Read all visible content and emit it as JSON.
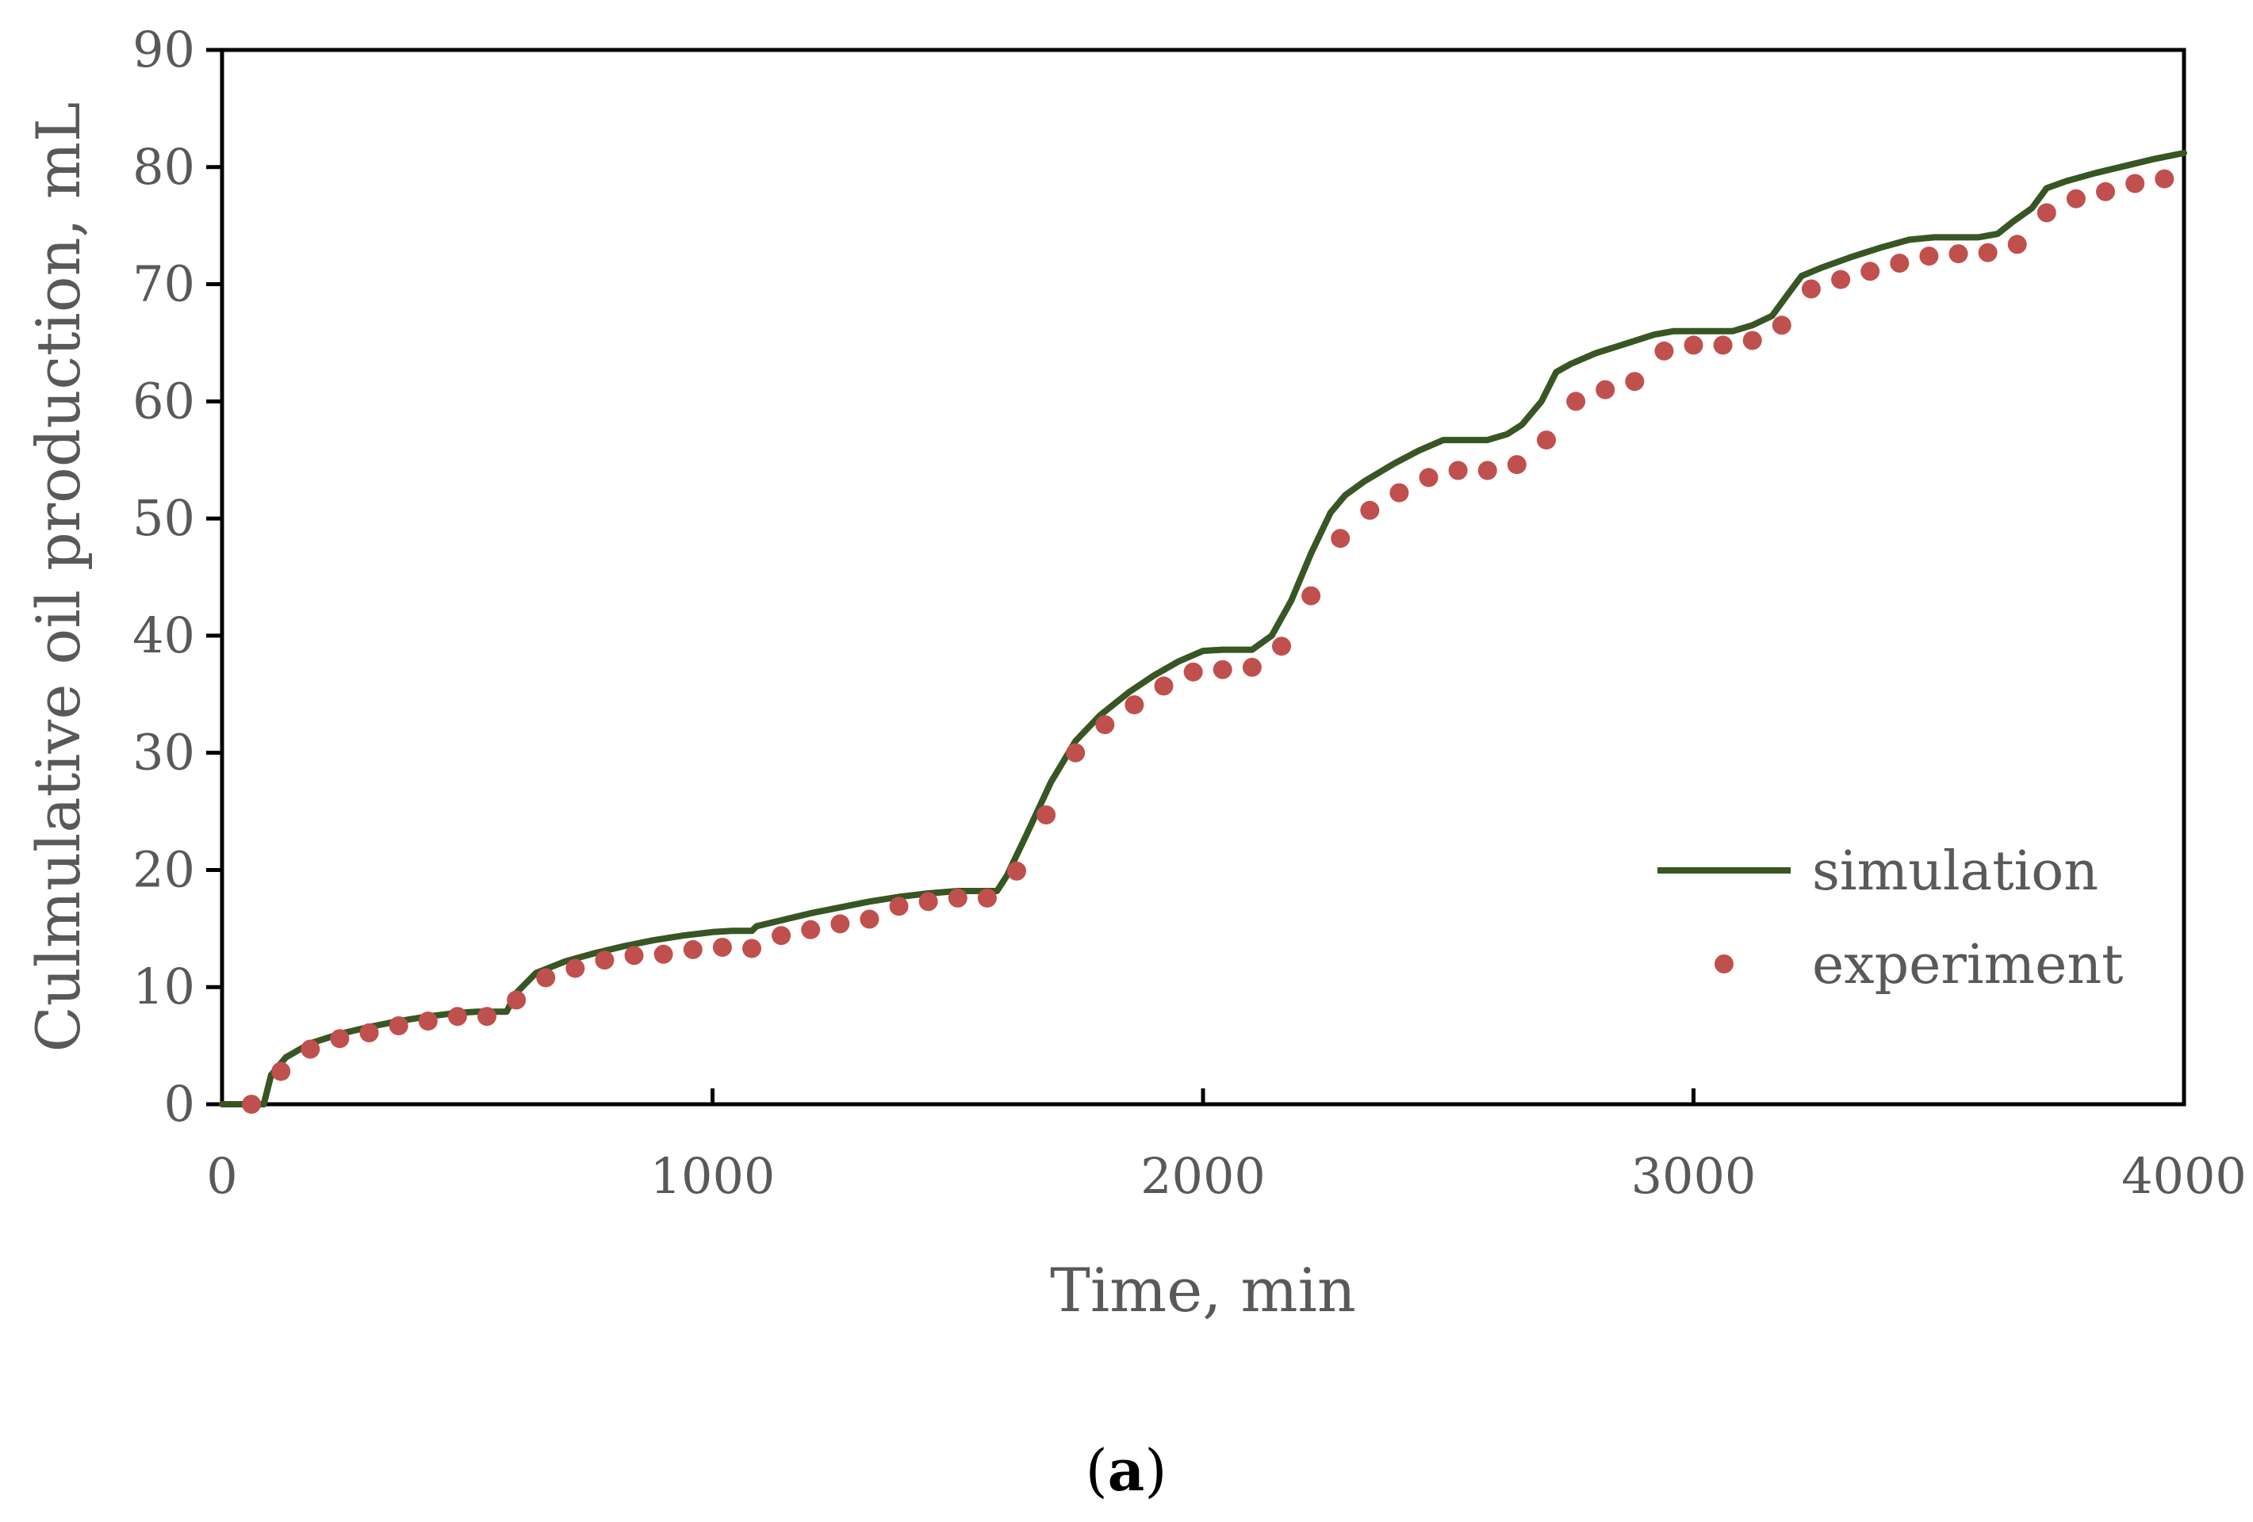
{
  "chart_data": {
    "type": "line",
    "title": "",
    "xlabel": "Time, min",
    "ylabel": "Culmulative oil production, mL",
    "xlim": [
      0,
      4000
    ],
    "ylim": [
      0,
      90
    ],
    "xticks": [
      0,
      1000,
      2000,
      3000,
      4000
    ],
    "yticks": [
      0,
      10,
      20,
      30,
      40,
      50,
      60,
      70,
      80,
      90
    ],
    "grid": false,
    "legend_position": "bottom-right",
    "caption": {
      "prefix": "(",
      "letter": "a",
      "suffix": ")"
    },
    "colors": {
      "simulation": "#375623",
      "experiment": "#c0504d",
      "axis": "#000000",
      "text": "#595959"
    },
    "series": [
      {
        "name": "simulation",
        "style": "line",
        "x": [
          0,
          85,
          100,
          130,
          180,
          240,
          300,
          360,
          420,
          480,
          520,
          580,
          600,
          640,
          700,
          760,
          820,
          880,
          940,
          1000,
          1040,
          1080,
          1090,
          1150,
          1200,
          1260,
          1320,
          1380,
          1440,
          1500,
          1560,
          1580,
          1600,
          1640,
          1690,
          1740,
          1790,
          1850,
          1900,
          1950,
          2000,
          2040,
          2080,
          2100,
          2140,
          2180,
          2220,
          2260,
          2290,
          2330,
          2390,
          2440,
          2490,
          2530,
          2580,
          2620,
          2650,
          2690,
          2720,
          2750,
          2800,
          2860,
          2920,
          2960,
          3000,
          3040,
          3080,
          3120,
          3160,
          3190,
          3220,
          3260,
          3320,
          3380,
          3440,
          3490,
          3540,
          3580,
          3620,
          3650,
          3690,
          3720,
          3760,
          3820,
          3880,
          3940,
          4000
        ],
        "y": [
          0,
          0,
          2.5,
          4,
          5.2,
          6,
          6.6,
          7.1,
          7.5,
          7.8,
          7.9,
          7.9,
          9.5,
          11.2,
          12.2,
          12.9,
          13.5,
          14,
          14.4,
          14.7,
          14.8,
          14.8,
          15.2,
          15.8,
          16.3,
          16.8,
          17.3,
          17.7,
          18,
          18.2,
          18.2,
          18.2,
          19.5,
          23,
          27.5,
          31,
          33.2,
          35.2,
          36.6,
          37.8,
          38.7,
          38.8,
          38.8,
          38.8,
          40,
          43,
          47,
          50.5,
          52,
          53.2,
          54.7,
          55.8,
          56.7,
          56.7,
          56.7,
          57.2,
          58,
          60,
          62.5,
          63.2,
          64.1,
          64.9,
          65.7,
          66,
          66,
          66,
          66,
          66.5,
          67.3,
          69,
          70.7,
          71.4,
          72.3,
          73.1,
          73.8,
          74,
          74,
          74,
          74.3,
          75.3,
          76.5,
          78.2,
          78.8,
          79.5,
          80.1,
          80.7,
          81.2
        ]
      },
      {
        "name": "experiment",
        "style": "markers",
        "x": [
          60,
          120,
          180,
          240,
          300,
          360,
          420,
          480,
          540,
          600,
          660,
          720,
          780,
          840,
          900,
          960,
          1020,
          1080,
          1140,
          1200,
          1260,
          1320,
          1380,
          1440,
          1500,
          1560,
          1620,
          1680,
          1740,
          1800,
          1860,
          1920,
          1980,
          2040,
          2100,
          2160,
          2220,
          2280,
          2340,
          2400,
          2460,
          2520,
          2580,
          2640,
          2700,
          2760,
          2820,
          2880,
          2940,
          3000,
          3060,
          3120,
          3180,
          3240,
          3300,
          3360,
          3420,
          3480,
          3540,
          3600,
          3660,
          3720,
          3780,
          3840,
          3900,
          3960
        ],
        "y": [
          0,
          2.8,
          4.7,
          5.6,
          6.1,
          6.7,
          7.1,
          7.5,
          7.5,
          8.9,
          10.8,
          11.6,
          12.3,
          12.7,
          12.8,
          13.2,
          13.4,
          13.3,
          14.4,
          14.9,
          15.4,
          15.8,
          16.9,
          17.3,
          17.6,
          17.6,
          19.9,
          24.7,
          30,
          32.4,
          34.1,
          35.7,
          36.9,
          37.1,
          37.3,
          39.1,
          43.4,
          48.3,
          50.7,
          52.2,
          53.5,
          54.1,
          54.1,
          54.6,
          56.7,
          60,
          61,
          61.7,
          64.3,
          64.8,
          64.8,
          65.2,
          66.5,
          69.6,
          70.4,
          71.1,
          71.8,
          72.4,
          72.6,
          72.7,
          73.4,
          76.1,
          77.3,
          77.9,
          78.6,
          79
        ]
      }
    ]
  }
}
